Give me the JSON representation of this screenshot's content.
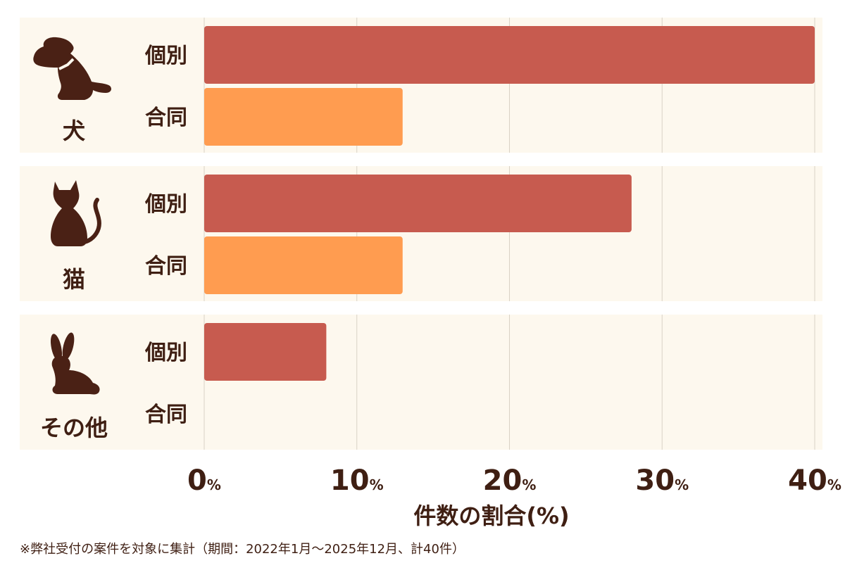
{
  "chart_data": {
    "type": "bar",
    "orientation": "horizontal",
    "groups": [
      {
        "name": "犬",
        "icon": "dog-icon"
      },
      {
        "name": "猫",
        "icon": "cat-icon"
      },
      {
        "name": "その他",
        "icon": "rabbit-icon"
      }
    ],
    "series": [
      {
        "name": "個別",
        "color": "#c75b4f",
        "values": [
          40,
          28,
          8
        ]
      },
      {
        "name": "合同",
        "color": "#ff9c50",
        "values": [
          13,
          13,
          0
        ]
      }
    ],
    "xlim": [
      0,
      40
    ],
    "xticks": [
      0,
      10,
      20,
      30,
      40
    ],
    "tick_unit": "%",
    "xlabel": "件数の割合(%)",
    "grid": true,
    "legend": "none"
  },
  "colors": {
    "panel_background": "#fdf8ee",
    "gridline": "#d9d2c5",
    "text": "#3f1f13",
    "icon": "#4a2115"
  },
  "footnote": "※弊社受付の案件を対象に集計（期間：2022年1月～2025年12月、計40件）"
}
